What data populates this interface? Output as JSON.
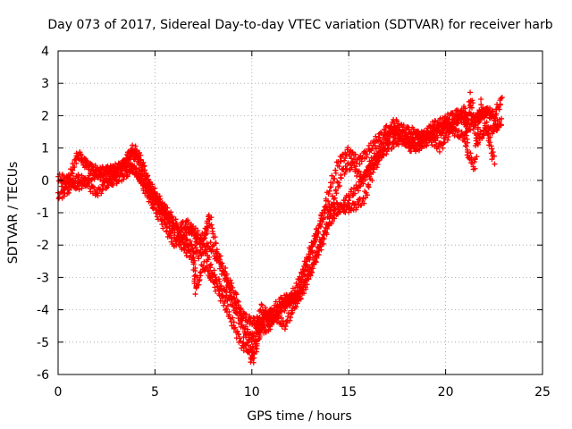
{
  "chart_data": {
    "type": "scatter",
    "title": "Day 073 of 2017, Sidereal Day-to-day VTEC variation (SDTVAR) for receiver harb",
    "xlabel": "GPS time / hours",
    "ylabel": "SDTVAR / TECUs",
    "xlim": [
      0,
      25
    ],
    "ylim": [
      -6,
      4
    ],
    "xticks": [
      "0",
      "5",
      "10",
      "15",
      "20",
      "25"
    ],
    "yticks": [
      "-6",
      "-5",
      "-4",
      "-3",
      "-2",
      "-1",
      "0",
      "1",
      "2",
      "3",
      "4"
    ],
    "grid": true,
    "marker": "+",
    "color": "#ff0000",
    "series": [
      {
        "points": [
          [
            0.0,
            -0.5
          ],
          [
            0.5,
            -0.3
          ],
          [
            1.0,
            0.1
          ],
          [
            1.5,
            -0.1
          ],
          [
            2.0,
            -0.4
          ],
          [
            2.5,
            -0.1
          ],
          [
            3.0,
            0.0
          ],
          [
            3.5,
            0.2
          ],
          [
            3.8,
            0.4
          ],
          [
            4.2,
            0.1
          ],
          [
            4.6,
            -0.4
          ],
          [
            5.0,
            -0.9
          ],
          [
            5.5,
            -1.4
          ],
          [
            6.0,
            -2.0
          ],
          [
            6.5,
            -1.6
          ],
          [
            7.0,
            -1.5
          ],
          [
            7.5,
            -2.0
          ],
          [
            8.0,
            -2.9
          ],
          [
            8.5,
            -3.4
          ],
          [
            9.0,
            -3.8
          ],
          [
            9.5,
            -4.5
          ],
          [
            10.0,
            -5.6
          ],
          [
            10.3,
            -5.0
          ],
          [
            10.6,
            -4.2
          ],
          [
            11.0,
            -4.1
          ],
          [
            11.5,
            -3.7
          ],
          [
            12.0,
            -3.6
          ],
          [
            12.5,
            -3.6
          ],
          [
            13.0,
            -2.8
          ],
          [
            13.5,
            -2.0
          ],
          [
            14.0,
            -1.3
          ],
          [
            14.5,
            -0.9
          ],
          [
            15.0,
            -0.5
          ],
          [
            15.5,
            -0.2
          ],
          [
            16.0,
            0.3
          ],
          [
            16.5,
            0.7
          ],
          [
            17.0,
            1.0
          ],
          [
            17.5,
            1.2
          ],
          [
            18.0,
            1.3
          ],
          [
            18.5,
            1.4
          ],
          [
            19.0,
            1.4
          ],
          [
            19.5,
            1.4
          ],
          [
            20.0,
            1.6
          ],
          [
            20.5,
            1.8
          ],
          [
            21.0,
            2.0
          ],
          [
            21.5,
            1.9
          ],
          [
            22.0,
            2.1
          ],
          [
            22.5,
            2.0
          ],
          [
            22.9,
            2.5
          ]
        ]
      },
      {
        "points": [
          [
            0.0,
            0.1
          ],
          [
            0.5,
            0.0
          ],
          [
            1.0,
            -0.2
          ],
          [
            1.5,
            0.0
          ],
          [
            2.0,
            0.2
          ],
          [
            2.5,
            0.3
          ],
          [
            3.0,
            0.3
          ],
          [
            3.5,
            0.6
          ],
          [
            3.9,
            1.0
          ],
          [
            4.3,
            0.6
          ],
          [
            4.7,
            -0.1
          ],
          [
            5.2,
            -0.6
          ],
          [
            5.7,
            -1.0
          ],
          [
            6.2,
            -1.5
          ],
          [
            6.7,
            -1.3
          ],
          [
            7.2,
            -1.9
          ],
          [
            7.6,
            -1.7
          ],
          [
            7.8,
            -1.1
          ],
          [
            8.2,
            -2.2
          ],
          [
            8.7,
            -3.0
          ],
          [
            9.2,
            -3.6
          ],
          [
            9.7,
            -4.7
          ],
          [
            10.0,
            -4.9
          ],
          [
            10.5,
            -3.9
          ],
          [
            11.0,
            -4.4
          ],
          [
            11.5,
            -4.0
          ],
          [
            12.0,
            -3.7
          ],
          [
            12.5,
            -3.0
          ],
          [
            13.0,
            -2.2
          ],
          [
            13.5,
            -1.4
          ],
          [
            14.0,
            -0.3
          ],
          [
            14.5,
            0.6
          ],
          [
            15.0,
            0.9
          ],
          [
            15.5,
            0.6
          ],
          [
            16.0,
            0.9
          ],
          [
            16.5,
            1.3
          ],
          [
            17.0,
            1.6
          ],
          [
            17.5,
            1.5
          ],
          [
            18.0,
            1.2
          ],
          [
            18.5,
            1.0
          ],
          [
            19.0,
            1.2
          ],
          [
            19.5,
            1.6
          ],
          [
            20.0,
            1.7
          ],
          [
            20.5,
            1.5
          ],
          [
            21.0,
            1.3
          ],
          [
            21.3,
            2.6
          ],
          [
            21.6,
            1.2
          ],
          [
            22.0,
            1.5
          ],
          [
            22.5,
            1.6
          ],
          [
            22.9,
            1.8
          ]
        ]
      },
      {
        "points": [
          [
            0.2,
            -0.2
          ],
          [
            0.6,
            0.1
          ],
          [
            1.0,
            0.8
          ],
          [
            1.5,
            0.5
          ],
          [
            2.0,
            0.3
          ],
          [
            2.5,
            0.3
          ],
          [
            3.0,
            0.4
          ],
          [
            3.5,
            0.5
          ],
          [
            4.0,
            0.3
          ],
          [
            4.5,
            -0.2
          ],
          [
            5.0,
            -0.6
          ],
          [
            5.5,
            -1.1
          ],
          [
            6.0,
            -1.7
          ],
          [
            6.5,
            -2.1
          ],
          [
            7.0,
            -2.4
          ],
          [
            7.1,
            -3.4
          ],
          [
            7.5,
            -2.6
          ],
          [
            8.0,
            -3.1
          ],
          [
            8.5,
            -3.7
          ],
          [
            9.0,
            -4.4
          ],
          [
            9.5,
            -5.1
          ],
          [
            10.0,
            -5.3
          ],
          [
            10.3,
            -4.6
          ],
          [
            10.8,
            -4.6
          ],
          [
            11.2,
            -4.2
          ],
          [
            11.7,
            -4.5
          ],
          [
            12.2,
            -3.9
          ],
          [
            12.7,
            -3.3
          ],
          [
            13.2,
            -2.6
          ],
          [
            13.7,
            -1.8
          ],
          [
            14.2,
            -0.6
          ],
          [
            14.7,
            0.3
          ],
          [
            15.2,
            0.5
          ],
          [
            15.7,
            0.0
          ],
          [
            16.2,
            0.6
          ],
          [
            16.7,
            1.1
          ],
          [
            17.2,
            1.5
          ],
          [
            17.7,
            1.3
          ],
          [
            18.2,
            1.0
          ],
          [
            18.7,
            1.1
          ],
          [
            19.2,
            1.3
          ],
          [
            19.7,
            1.0
          ],
          [
            20.2,
            1.5
          ],
          [
            20.6,
            1.9
          ],
          [
            21.0,
            2.2
          ],
          [
            21.1,
            0.9
          ],
          [
            21.5,
            0.4
          ],
          [
            21.8,
            2.4
          ],
          [
            22.2,
            1.4
          ],
          [
            22.5,
            0.6
          ]
        ]
      },
      {
        "points": [
          [
            1.0,
            0.8
          ],
          [
            1.6,
            0.4
          ],
          [
            2.2,
            0.1
          ],
          [
            2.8,
            0.1
          ],
          [
            3.3,
            0.4
          ],
          [
            3.7,
            0.8
          ],
          [
            4.1,
            0.7
          ],
          [
            4.5,
            0.0
          ],
          [
            4.9,
            -0.4
          ],
          [
            5.4,
            -0.9
          ],
          [
            5.9,
            -1.3
          ],
          [
            6.4,
            -1.8
          ],
          [
            6.8,
            -2.0
          ],
          [
            7.3,
            -2.3
          ],
          [
            7.8,
            -2.0
          ],
          [
            8.3,
            -2.5
          ],
          [
            8.8,
            -3.3
          ],
          [
            9.3,
            -4.0
          ],
          [
            9.8,
            -4.3
          ],
          [
            10.2,
            -4.4
          ],
          [
            10.7,
            -4.3
          ],
          [
            11.3,
            -4.0
          ],
          [
            11.8,
            -3.8
          ],
          [
            12.3,
            -3.6
          ],
          [
            12.8,
            -2.7
          ],
          [
            13.3,
            -1.7
          ],
          [
            13.8,
            -0.9
          ],
          [
            14.3,
            -0.8
          ],
          [
            14.8,
            -0.9
          ],
          [
            15.3,
            -0.8
          ],
          [
            15.8,
            -0.6
          ],
          [
            16.3,
            0.4
          ],
          [
            16.8,
            0.9
          ],
          [
            17.3,
            1.8
          ],
          [
            17.8,
            1.6
          ],
          [
            18.3,
            1.5
          ],
          [
            18.8,
            1.3
          ],
          [
            19.3,
            1.7
          ],
          [
            19.8,
            1.8
          ],
          [
            20.3,
            2.0
          ],
          [
            20.8,
            2.1
          ],
          [
            21.2,
            1.6
          ],
          [
            21.7,
            1.9
          ],
          [
            22.2,
            2.2
          ],
          [
            22.7,
            1.7
          ]
        ]
      }
    ]
  }
}
